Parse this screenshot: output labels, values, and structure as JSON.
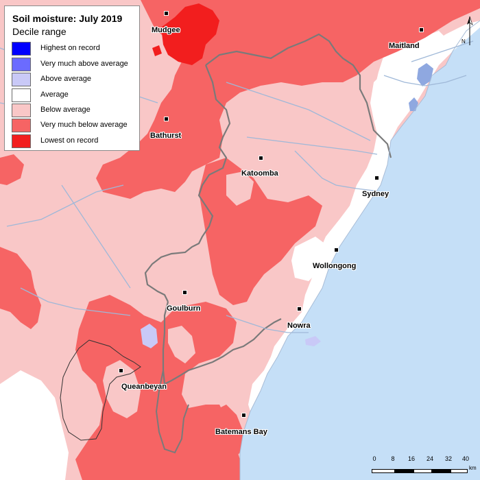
{
  "legend": {
    "title": "Soil moisture: July 2019",
    "subtitle": "Decile range",
    "items": [
      {
        "label": "Highest on record",
        "color": "#0000ff"
      },
      {
        "label": "Very much above average",
        "color": "#6b6bff"
      },
      {
        "label": "Above average",
        "color": "#c9c9f7"
      },
      {
        "label": "Average",
        "color": "#ffffff"
      },
      {
        "label": "Below average",
        "color": "#f9c7c7"
      },
      {
        "label": "Very much below average",
        "color": "#f66464"
      },
      {
        "label": "Lowest on record",
        "color": "#f21e1e"
      }
    ]
  },
  "towns": [
    {
      "name": "Mudgee"
    },
    {
      "name": "Maitland"
    },
    {
      "name": "Bathurst"
    },
    {
      "name": "Katoomba"
    },
    {
      "name": "Sydney"
    },
    {
      "name": "Wollongong"
    },
    {
      "name": "Goulburn"
    },
    {
      "name": "Nowra"
    },
    {
      "name": "Queanbeyan"
    },
    {
      "name": "Batemans Bay"
    }
  ],
  "north_arrow": {
    "label": "N"
  },
  "scale_bar": {
    "ticks": [
      "0",
      "8",
      "16",
      "24",
      "32",
      "40"
    ],
    "unit": "km"
  },
  "colors": {
    "ocean": "#c5dff7",
    "river": "#9fb8d8",
    "boundary": "#6f6f6f"
  }
}
